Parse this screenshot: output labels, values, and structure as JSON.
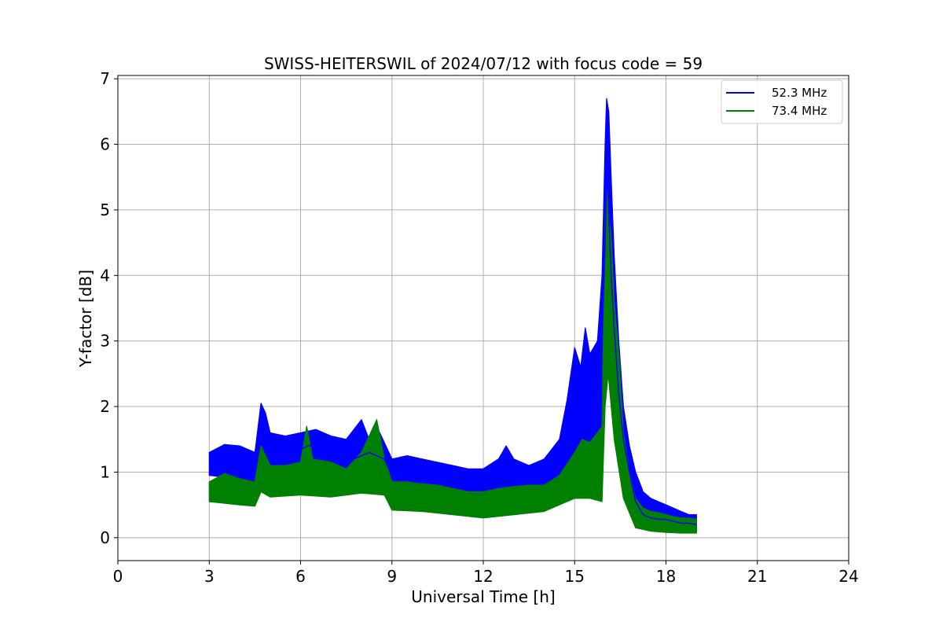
{
  "chart_data": {
    "type": "line",
    "title": "SWISS-HEITERSWIL of 2024/07/12 with focus code = 59",
    "xlabel": "Universal Time [h]",
    "ylabel": "Y-factor [dB]",
    "xlim": [
      0,
      24
    ],
    "ylim": [
      -0.35,
      7.05
    ],
    "xticks": [
      0,
      3,
      6,
      9,
      12,
      15,
      18,
      21,
      24
    ],
    "yticks": [
      0,
      1,
      2,
      3,
      4,
      5,
      6,
      7
    ],
    "grid": true,
    "legend_position": "top-right",
    "series": [
      {
        "name": "52.3 MHz",
        "color": "#0000ff",
        "points": [
          [
            3.0,
            1.1
          ],
          [
            3.25,
            1.2
          ],
          [
            3.5,
            1.15
          ],
          [
            3.75,
            1.1
          ],
          [
            4.0,
            1.15
          ],
          [
            4.25,
            1.1
          ],
          [
            4.5,
            1.05
          ],
          [
            4.7,
            1.6
          ],
          [
            4.85,
            1.6
          ],
          [
            5.0,
            1.35
          ],
          [
            5.25,
            1.35
          ],
          [
            5.5,
            1.3
          ],
          [
            5.75,
            1.3
          ],
          [
            6.0,
            1.35
          ],
          [
            6.25,
            1.4
          ],
          [
            6.5,
            1.4
          ],
          [
            6.75,
            1.35
          ],
          [
            7.0,
            1.3
          ],
          [
            7.25,
            1.25
          ],
          [
            7.5,
            1.2
          ],
          [
            7.75,
            1.2
          ],
          [
            8.0,
            1.25
          ],
          [
            8.25,
            1.3
          ],
          [
            8.5,
            1.25
          ],
          [
            8.75,
            1.2
          ],
          [
            9.0,
            0.95
          ],
          [
            9.25,
            0.95
          ],
          [
            9.5,
            0.95
          ],
          [
            9.75,
            0.95
          ],
          [
            10.0,
            0.9
          ],
          [
            10.25,
            0.9
          ],
          [
            10.5,
            0.85
          ],
          [
            10.75,
            0.85
          ],
          [
            11.0,
            0.8
          ],
          [
            11.25,
            0.8
          ],
          [
            11.5,
            0.75
          ],
          [
            11.75,
            0.8
          ],
          [
            12.0,
            0.75
          ],
          [
            12.25,
            0.75
          ],
          [
            12.5,
            0.8
          ],
          [
            12.75,
            0.85
          ],
          [
            13.0,
            0.9
          ],
          [
            13.25,
            0.85
          ],
          [
            13.5,
            0.85
          ],
          [
            13.75,
            0.85
          ],
          [
            14.0,
            0.9
          ],
          [
            14.25,
            0.95
          ],
          [
            14.5,
            1.1
          ],
          [
            14.75,
            1.5
          ],
          [
            15.0,
            1.8
          ],
          [
            15.25,
            1.8
          ],
          [
            15.5,
            1.9
          ],
          [
            15.75,
            2.2
          ],
          [
            15.9,
            3.0
          ],
          [
            16.0,
            4.5
          ],
          [
            16.05,
            5.5
          ],
          [
            16.1,
            5.2
          ],
          [
            16.2,
            4.0
          ],
          [
            16.3,
            3.2
          ],
          [
            16.45,
            2.2
          ],
          [
            16.6,
            1.5
          ],
          [
            16.8,
            1.0
          ],
          [
            17.0,
            0.55
          ],
          [
            17.25,
            0.35
          ],
          [
            17.5,
            0.3
          ],
          [
            17.75,
            0.28
          ],
          [
            18.0,
            0.28
          ],
          [
            18.25,
            0.25
          ],
          [
            18.5,
            0.22
          ],
          [
            18.75,
            0.22
          ],
          [
            19.0,
            0.2
          ]
        ],
        "lower": [
          [
            3.0,
            0.95
          ],
          [
            4.0,
            0.9
          ],
          [
            4.5,
            0.85
          ],
          [
            4.7,
            1.1
          ],
          [
            5.0,
            1.05
          ],
          [
            6.0,
            1.05
          ],
          [
            7.0,
            0.95
          ],
          [
            8.0,
            0.95
          ],
          [
            8.75,
            0.9
          ],
          [
            9.0,
            0.65
          ],
          [
            10.0,
            0.6
          ],
          [
            11.0,
            0.55
          ],
          [
            12.0,
            0.5
          ],
          [
            13.0,
            0.55
          ],
          [
            14.0,
            0.6
          ],
          [
            14.5,
            0.75
          ],
          [
            15.0,
            1.0
          ],
          [
            15.5,
            1.1
          ],
          [
            15.8,
            1.3
          ],
          [
            16.0,
            2.5
          ],
          [
            16.1,
            3.3
          ],
          [
            16.3,
            2.0
          ],
          [
            16.6,
            0.9
          ],
          [
            17.0,
            0.2
          ],
          [
            17.5,
            0.12
          ],
          [
            18.0,
            0.1
          ],
          [
            18.5,
            0.08
          ],
          [
            19.0,
            0.08
          ]
        ],
        "upper": [
          [
            3.0,
            1.3
          ],
          [
            3.5,
            1.42
          ],
          [
            4.0,
            1.4
          ],
          [
            4.5,
            1.3
          ],
          [
            4.7,
            2.05
          ],
          [
            4.85,
            1.9
          ],
          [
            5.0,
            1.6
          ],
          [
            5.5,
            1.55
          ],
          [
            6.0,
            1.6
          ],
          [
            6.5,
            1.65
          ],
          [
            7.0,
            1.55
          ],
          [
            7.5,
            1.5
          ],
          [
            8.0,
            1.8
          ],
          [
            8.25,
            1.5
          ],
          [
            8.5,
            1.7
          ],
          [
            8.75,
            1.45
          ],
          [
            9.0,
            1.2
          ],
          [
            9.5,
            1.25
          ],
          [
            10.0,
            1.2
          ],
          [
            10.5,
            1.15
          ],
          [
            11.0,
            1.1
          ],
          [
            11.5,
            1.05
          ],
          [
            12.0,
            1.05
          ],
          [
            12.5,
            1.2
          ],
          [
            12.75,
            1.4
          ],
          [
            13.0,
            1.2
          ],
          [
            13.5,
            1.1
          ],
          [
            14.0,
            1.2
          ],
          [
            14.5,
            1.5
          ],
          [
            14.75,
            2.1
          ],
          [
            15.0,
            2.9
          ],
          [
            15.2,
            2.6
          ],
          [
            15.35,
            3.2
          ],
          [
            15.5,
            2.8
          ],
          [
            15.75,
            3.0
          ],
          [
            15.9,
            4.0
          ],
          [
            16.0,
            6.0
          ],
          [
            16.05,
            6.7
          ],
          [
            16.12,
            6.5
          ],
          [
            16.2,
            5.5
          ],
          [
            16.3,
            4.3
          ],
          [
            16.45,
            3.0
          ],
          [
            16.6,
            2.0
          ],
          [
            16.8,
            1.4
          ],
          [
            17.0,
            1.0
          ],
          [
            17.25,
            0.7
          ],
          [
            17.5,
            0.6
          ],
          [
            17.75,
            0.55
          ],
          [
            18.0,
            0.5
          ],
          [
            18.25,
            0.45
          ],
          [
            18.5,
            0.4
          ],
          [
            18.75,
            0.35
          ],
          [
            19.0,
            0.35
          ]
        ]
      },
      {
        "name": "73.4 MHz",
        "color": "#008000",
        "points": [
          [
            3.0,
            0.7
          ],
          [
            3.25,
            0.75
          ],
          [
            3.5,
            0.7
          ],
          [
            3.75,
            0.7
          ],
          [
            4.0,
            0.7
          ],
          [
            4.25,
            0.7
          ],
          [
            4.5,
            0.7
          ],
          [
            4.7,
            1.0
          ],
          [
            4.85,
            0.95
          ],
          [
            5.0,
            0.85
          ],
          [
            5.25,
            0.85
          ],
          [
            5.5,
            0.85
          ],
          [
            5.75,
            0.85
          ],
          [
            6.0,
            0.9
          ],
          [
            6.25,
            0.95
          ],
          [
            6.5,
            0.95
          ],
          [
            6.75,
            0.9
          ],
          [
            7.0,
            0.85
          ],
          [
            7.25,
            0.85
          ],
          [
            7.5,
            0.8
          ],
          [
            7.75,
            0.85
          ],
          [
            8.0,
            0.9
          ],
          [
            8.25,
            0.95
          ],
          [
            8.5,
            0.95
          ],
          [
            8.75,
            0.85
          ],
          [
            9.0,
            0.6
          ],
          [
            9.25,
            0.6
          ],
          [
            9.5,
            0.6
          ],
          [
            9.75,
            0.6
          ],
          [
            10.0,
            0.6
          ],
          [
            10.25,
            0.6
          ],
          [
            10.5,
            0.55
          ],
          [
            10.75,
            0.55
          ],
          [
            11.0,
            0.5
          ],
          [
            11.25,
            0.5
          ],
          [
            11.5,
            0.5
          ],
          [
            11.75,
            0.5
          ],
          [
            12.0,
            0.48
          ],
          [
            12.25,
            0.48
          ],
          [
            12.5,
            0.5
          ],
          [
            12.75,
            0.52
          ],
          [
            13.0,
            0.55
          ],
          [
            13.25,
            0.55
          ],
          [
            13.5,
            0.55
          ],
          [
            13.75,
            0.55
          ],
          [
            14.0,
            0.6
          ],
          [
            14.25,
            0.62
          ],
          [
            14.5,
            0.7
          ],
          [
            14.75,
            0.85
          ],
          [
            15.0,
            0.9
          ],
          [
            15.25,
            0.9
          ],
          [
            15.5,
            0.9
          ],
          [
            15.75,
            0.95
          ],
          [
            15.9,
            0.9
          ],
          [
            16.0,
            3.0
          ],
          [
            16.05,
            4.0
          ],
          [
            16.1,
            3.8
          ],
          [
            16.2,
            3.0
          ],
          [
            16.3,
            2.5
          ],
          [
            16.45,
            1.8
          ],
          [
            16.6,
            1.0
          ],
          [
            16.8,
            0.55
          ],
          [
            17.0,
            0.3
          ],
          [
            17.25,
            0.25
          ],
          [
            17.5,
            0.22
          ],
          [
            17.75,
            0.2
          ],
          [
            18.0,
            0.18
          ],
          [
            18.25,
            0.17
          ],
          [
            18.5,
            0.15
          ],
          [
            18.75,
            0.15
          ],
          [
            19.0,
            0.15
          ]
        ],
        "lower": [
          [
            3.0,
            0.55
          ],
          [
            4.0,
            0.5
          ],
          [
            4.5,
            0.48
          ],
          [
            4.7,
            0.7
          ],
          [
            5.0,
            0.62
          ],
          [
            6.0,
            0.65
          ],
          [
            7.0,
            0.62
          ],
          [
            8.0,
            0.68
          ],
          [
            8.75,
            0.65
          ],
          [
            9.0,
            0.42
          ],
          [
            10.0,
            0.4
          ],
          [
            11.0,
            0.35
          ],
          [
            12.0,
            0.3
          ],
          [
            13.0,
            0.35
          ],
          [
            14.0,
            0.4
          ],
          [
            14.5,
            0.5
          ],
          [
            15.0,
            0.6
          ],
          [
            15.5,
            0.6
          ],
          [
            15.9,
            0.55
          ],
          [
            16.0,
            2.0
          ],
          [
            16.1,
            2.5
          ],
          [
            16.3,
            1.5
          ],
          [
            16.6,
            0.6
          ],
          [
            17.0,
            0.15
          ],
          [
            17.5,
            0.1
          ],
          [
            18.0,
            0.08
          ],
          [
            18.5,
            0.07
          ],
          [
            19.0,
            0.07
          ]
        ],
        "upper": [
          [
            3.0,
            0.85
          ],
          [
            3.5,
            0.98
          ],
          [
            4.0,
            0.9
          ],
          [
            4.5,
            0.85
          ],
          [
            4.7,
            1.4
          ],
          [
            4.85,
            1.25
          ],
          [
            5.0,
            1.1
          ],
          [
            5.5,
            1.1
          ],
          [
            6.0,
            1.15
          ],
          [
            6.2,
            1.7
          ],
          [
            6.4,
            1.2
          ],
          [
            7.0,
            1.15
          ],
          [
            7.5,
            1.05
          ],
          [
            8.0,
            1.3
          ],
          [
            8.5,
            1.8
          ],
          [
            8.75,
            1.2
          ],
          [
            9.0,
            0.85
          ],
          [
            9.5,
            0.85
          ],
          [
            10.0,
            0.82
          ],
          [
            10.5,
            0.8
          ],
          [
            11.0,
            0.75
          ],
          [
            11.5,
            0.7
          ],
          [
            12.0,
            0.7
          ],
          [
            12.5,
            0.75
          ],
          [
            13.0,
            0.78
          ],
          [
            13.5,
            0.8
          ],
          [
            14.0,
            0.8
          ],
          [
            14.5,
            0.95
          ],
          [
            15.0,
            1.3
          ],
          [
            15.25,
            1.5
          ],
          [
            15.5,
            1.45
          ],
          [
            15.75,
            1.6
          ],
          [
            15.9,
            1.7
          ],
          [
            16.0,
            4.8
          ],
          [
            16.05,
            5.5
          ],
          [
            16.15,
            4.8
          ],
          [
            16.2,
            4.6
          ],
          [
            16.3,
            3.6
          ],
          [
            16.45,
            2.8
          ],
          [
            16.6,
            1.6
          ],
          [
            16.8,
            1.0
          ],
          [
            17.0,
            0.6
          ],
          [
            17.25,
            0.45
          ],
          [
            17.5,
            0.4
          ],
          [
            17.75,
            0.38
          ],
          [
            18.0,
            0.35
          ],
          [
            18.25,
            0.32
          ],
          [
            18.5,
            0.3
          ],
          [
            18.75,
            0.3
          ],
          [
            19.0,
            0.28
          ]
        ]
      }
    ]
  }
}
